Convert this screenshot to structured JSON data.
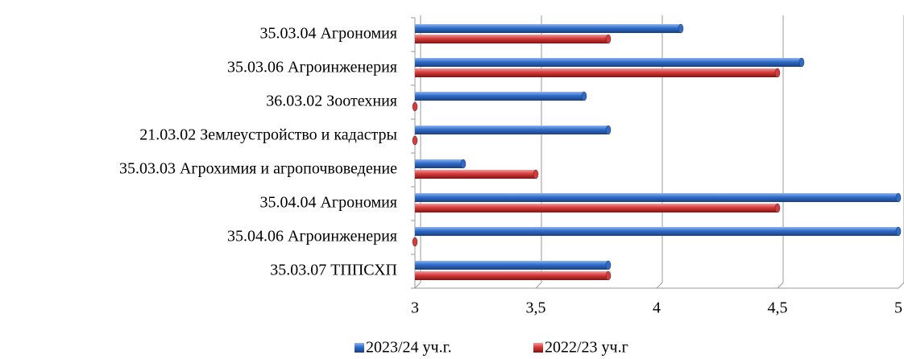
{
  "chart_data": {
    "type": "bar",
    "orientation": "horizontal",
    "categories": [
      "35.03.04 Агрономия",
      "35.03.06 Агроинженерия",
      "36.03.02 Зоотехния",
      "21.03.02 Землеустройство и кадастры",
      "35.03.03 Агрохимия и агропочвоведение",
      "35.04.04 Агрономия",
      "35.04.06 Агроинженерия",
      "35.03.07 ТППСХП"
    ],
    "series": [
      {
        "name": "2023/24 уч.г.",
        "color": "#2e6cc9",
        "values": [
          4.1,
          4.6,
          3.7,
          3.8,
          3.2,
          5,
          5,
          3.8
        ]
      },
      {
        "name": "2022/23 уч.г",
        "color": "#d63a3a",
        "values": [
          3.8,
          4.5,
          3,
          3,
          3.5,
          4.5,
          3,
          3.8
        ]
      }
    ],
    "xlim": [
      3,
      5
    ],
    "xticks": [
      3,
      {
        "value": 3.5,
        "label": "3,5"
      },
      4,
      {
        "value": 4.5,
        "label": "4,5"
      },
      5
    ],
    "grid": true,
    "legend": "bottom"
  }
}
